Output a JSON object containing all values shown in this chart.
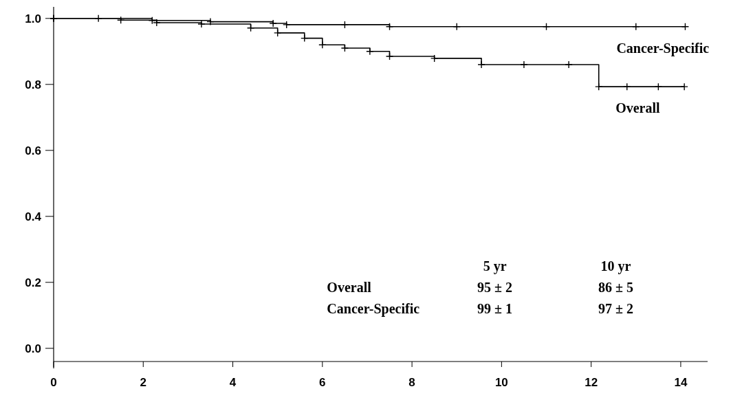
{
  "chart_data": {
    "type": "step",
    "xlim": [
      0,
      14.6
    ],
    "ylim": [
      -0.04,
      1.035
    ],
    "xticks": [
      0,
      2,
      4,
      6,
      8,
      10,
      12,
      14
    ],
    "yticks": [
      {
        "value": 0,
        "label": "0.0"
      },
      {
        "value": 0.2,
        "label": "0.2"
      },
      {
        "value": 0.4,
        "label": "0.4"
      },
      {
        "value": 0.6,
        "label": "0.6"
      },
      {
        "value": 0.8,
        "label": "0.8"
      },
      {
        "value": 1,
        "label": "1.0"
      }
    ],
    "marker": "cross",
    "line_style": "solid",
    "grid": false,
    "series": [
      {
        "name": "Cancer-Specific",
        "color": "#000000",
        "x": [
          0,
          1,
          2.2,
          3.5,
          4.9,
          5.2,
          6.5,
          7.5,
          9,
          11,
          13,
          14.1
        ],
        "values": [
          1,
          1,
          0.994,
          0.99,
          0.985,
          0.981,
          0.981,
          0.975,
          0.975,
          0.975,
          0.975,
          0.975
        ]
      },
      {
        "name": "Overall",
        "color": "#000000",
        "x": [
          0,
          1.5,
          2.3,
          3.3,
          4.4,
          5,
          5.6,
          6,
          6.5,
          7.06,
          7.5,
          8.5,
          9.55,
          10.5,
          11.5,
          12.17,
          12.8,
          13.5,
          14.08
        ],
        "values": [
          1,
          0.995,
          0.987,
          0.983,
          0.971,
          0.956,
          0.94,
          0.92,
          0.91,
          0.9,
          0.885,
          0.879,
          0.86,
          0.86,
          0.86,
          0.793,
          0.793,
          0.793,
          0.793
        ]
      }
    ],
    "annotations": [
      "5 yr",
      "10 yr",
      "Overall",
      "95 ± 2",
      "86 ± 5",
      "Cancer-Specific",
      "99 ± 1",
      "97 ± 2"
    ]
  }
}
